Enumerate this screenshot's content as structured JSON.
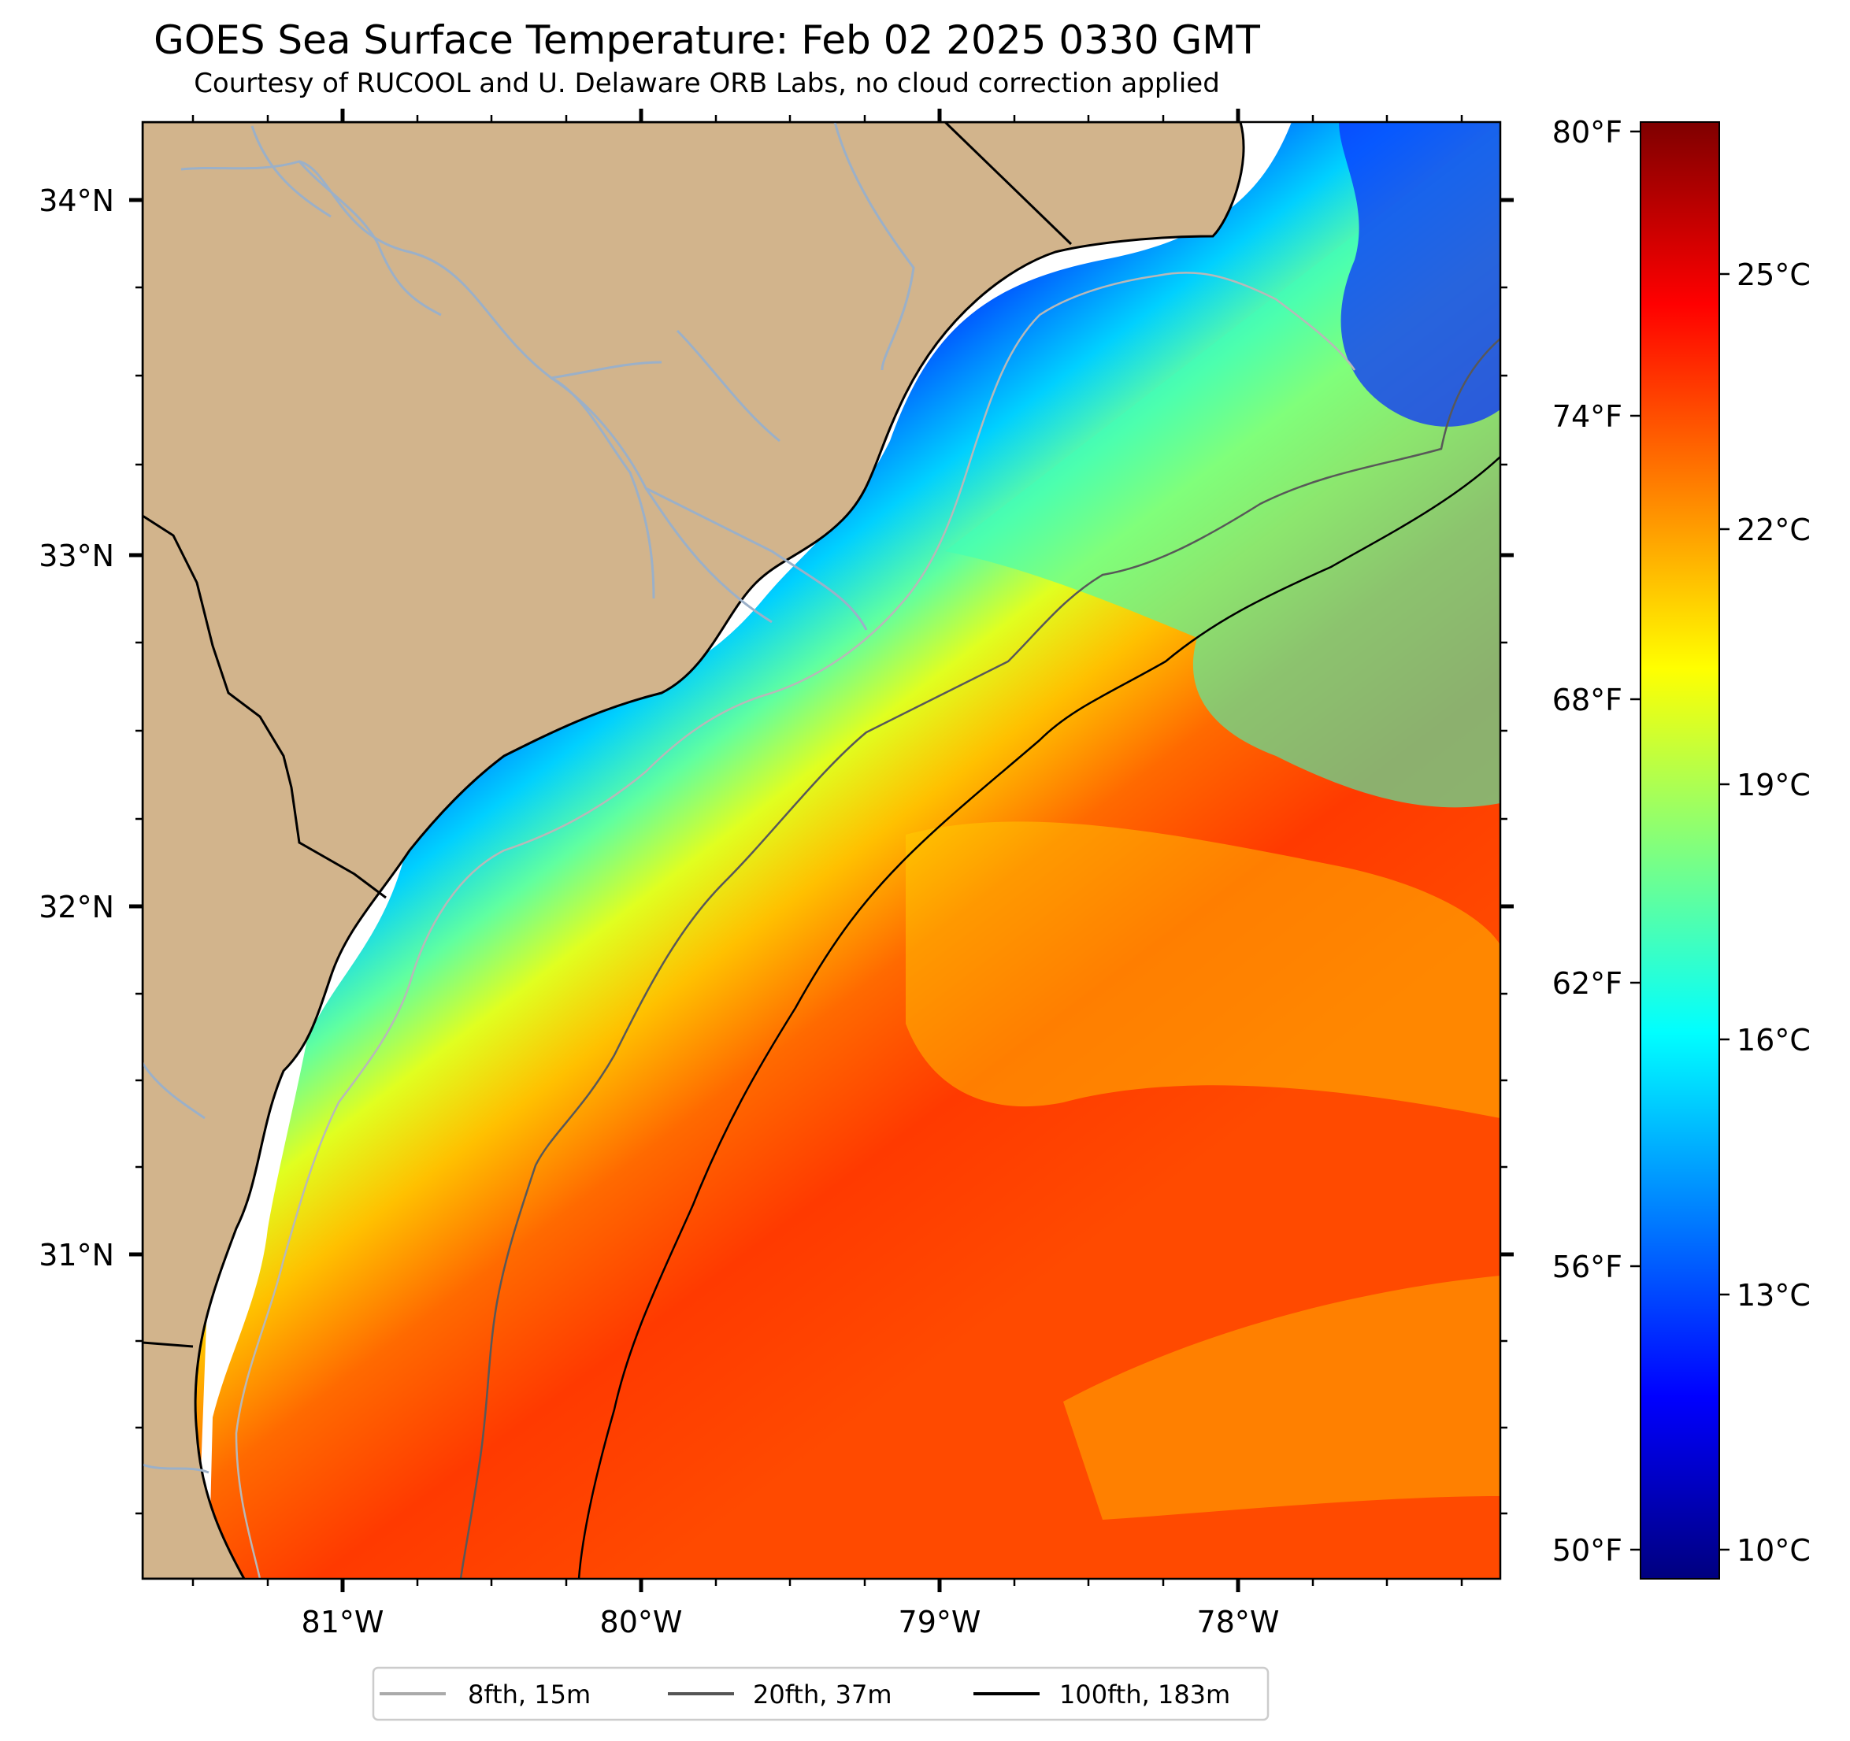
{
  "title": "GOES Sea Surface Temperature: Feb 02 2025 0330 GMT",
  "subtitle": "Courtesy of RUCOOL and U. Delaware ORB Labs, no cloud correction applied",
  "map": {
    "lon_ticks": [
      "81°W",
      "80°W",
      "79°W",
      "78°W"
    ],
    "lat_ticks": [
      "34°N",
      "33°N",
      "32°N",
      "31°N"
    ]
  },
  "colorbar": {
    "colormap": "jet",
    "fahrenheit_ticks": [
      "80°F",
      "74°F",
      "68°F",
      "62°F",
      "56°F",
      "50°F"
    ],
    "celsius_ticks": [
      "25°C",
      "22°C",
      "19°C",
      "16°C",
      "13°C",
      "10°C"
    ],
    "colors": [
      "#00007f",
      "#0000ff",
      "#007fff",
      "#00ffff",
      "#7fff7f",
      "#ffff00",
      "#ff7f00",
      "#ff0000",
      "#7f0000"
    ]
  },
  "legend": {
    "items": [
      {
        "label": "8fth, 15m",
        "color": "#aaaaaa"
      },
      {
        "label": "20fth, 37m",
        "color": "#555555"
      },
      {
        "label": "100fth, 183m",
        "color": "#000000"
      }
    ]
  },
  "colors": {
    "land": "#d2b48c",
    "rivers": "#9bb0c8",
    "no_data": "#ffffff"
  }
}
